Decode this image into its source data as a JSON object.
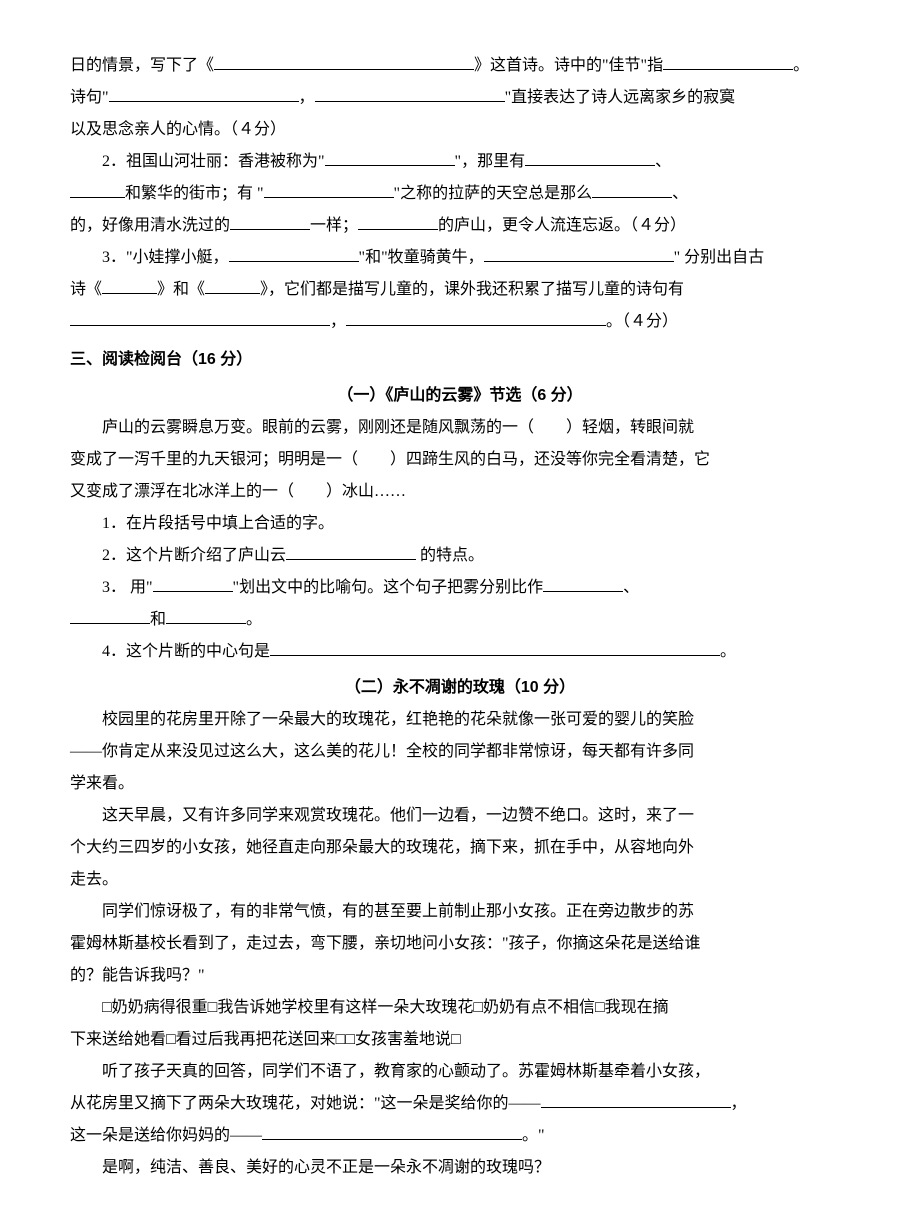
{
  "colors": {
    "text": "#000000",
    "bg": "#ffffff",
    "underline": "#000000"
  },
  "typography": {
    "body_font": "SimSun",
    "heading_font": "SimHei",
    "size_pt": 12,
    "line_height": 2.0
  },
  "line1": "日的情景，写下了《",
  "line1b": "》这首诗。诗中的\"佳节\"指",
  "line1c": "。",
  "line2a": "诗句\"",
  "line2b": "，",
  "line2c": "\"直接表达了诗人远离家乡的寂寞",
  "line3": "以及思念亲人的心情。（４分）",
  "q2a": "2．祖国山河壮丽：香港被称为\"",
  "q2b": "\"，那里有",
  "q2c": "、",
  "q2d": "和繁华的街市；有 \"",
  "q2e": "\"之称的拉萨的天空总是那么",
  "q2f": "、",
  "q2g": "的，好像用清水洗过的",
  "q2h": "一样；",
  "q2i": "的庐山，更令人流连忘返。（４分）",
  "q3a": "3．\"小娃撑小艇，",
  "q3b": "\"和\"牧童骑黄牛，",
  "q3c": "\" 分别出自古",
  "q3d": "诗《",
  "q3e": "》和《",
  "q3f": "》，它们都是描写儿童的，课外我还积累了描写儿童的诗句有",
  "q3g": "，",
  "q3h": "。（４分）",
  "sec3_title": "三、阅读检阅台（16 分）",
  "passage1_title": "（一）《庐山的云雾》节选（6 分）",
  "p1_1": "庐山的云雾瞬息万变。眼前的云雾，刚刚还是随风飘荡的一（　　）轻烟，转眼间就",
  "p1_2": "变成了一泻千里的九天银河；明明是一（　　）四蹄生风的白马，还没等你完全看清楚，它",
  "p1_3": "又变成了漂浮在北冰洋上的一（　　）冰山……",
  "p1_q1": "1．在片段括号中填上合适的字。",
  "p1_q2a": "2．这个片断介绍了庐山云",
  "p1_q2b": " 的特点。",
  "p1_q3a": "3． 用\"",
  "p1_q3b": "\"划出文中的比喻句。这个句子把雾分别比作",
  "p1_q3c": "、",
  "p1_q3d": "和",
  "p1_q3e": "。",
  "p1_q4a": "4．这个片断的中心句是",
  "p1_q4b": "。",
  "passage2_title": "（二）永不凋谢的玫瑰（10 分）",
  "p2_1": "校园里的花房里开除了一朵最大的玫瑰花，红艳艳的花朵就像一张可爱的婴儿的笑脸",
  "p2_2": "——你肯定从来没见过这么大，这么美的花儿！全校的同学都非常惊讶，每天都有许多同",
  "p2_3": "学来看。",
  "p2_4": "这天早晨，又有许多同学来观赏玫瑰花。他们一边看，一边赞不绝口。这时，来了一",
  "p2_5": "个大约三四岁的小女孩，她径直走向那朵最大的玫瑰花，摘下来，抓在手中，从容地向外",
  "p2_6": "走去。",
  "p2_7": "同学们惊讶极了，有的非常气愤，有的甚至要上前制止那小女孩。正在旁边散步的苏",
  "p2_8": "霍姆林斯基校长看到了，走过去，弯下腰，亲切地问小女孩：\"孩子，你摘这朵花是送给谁",
  "p2_9": "的？能告诉我吗？\"",
  "p2_10": "□奶奶病得很重□我告诉她学校里有这样一朵大玫瑰花□奶奶有点不相信□我现在摘",
  "p2_11": "下来送给她看□看过后我再把花送回来□□女孩害羞地说□",
  "p2_12": "听了孩子天真的回答，同学们不语了，教育家的心颤动了。苏霍姆林斯基牵着小女孩，",
  "p2_13a": "从花房里又摘下了两朵大玫瑰花，对她说：\"这一朵是奖给你的——",
  "p2_13b": "，",
  "p2_14a": "这一朵是送给你妈妈的——",
  "p2_14b": "。\"",
  "p2_15": "是啊，纯洁、善良、美好的心灵不正是一朵永不凋谢的玫瑰吗？"
}
